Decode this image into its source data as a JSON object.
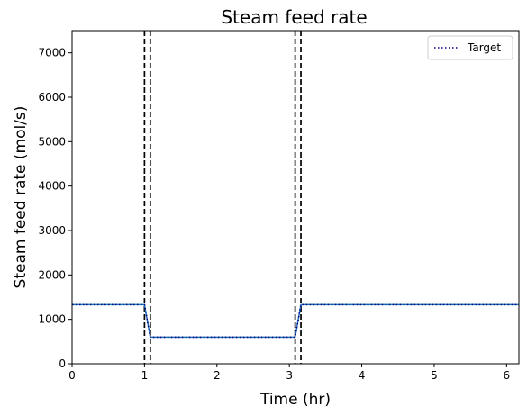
{
  "chart_data": {
    "type": "line",
    "title": "Steam feed rate",
    "xlabel": "Time (hr)",
    "ylabel": "Steam feed rate (mol/s)",
    "xlim": [
      0,
      6.17
    ],
    "ylim": [
      0,
      7500
    ],
    "xticks": [
      0,
      1,
      2,
      3,
      4,
      5,
      6
    ],
    "yticks": [
      0,
      1000,
      2000,
      3000,
      4000,
      5000,
      6000,
      7000
    ],
    "grid": false,
    "legend_position": "top-right",
    "series": [
      {
        "name": "",
        "style": "solid",
        "color": "#1f77b4",
        "x": [
          0,
          1.0,
          1.08,
          3.08,
          3.16,
          6.17
        ],
        "y": [
          1330,
          1330,
          600,
          600,
          1330,
          1330
        ]
      },
      {
        "name": "Target",
        "style": "dotted",
        "color": "#00008b",
        "x": [
          0,
          1.0,
          1.08,
          3.08,
          3.16,
          6.17
        ],
        "y": [
          1330,
          1330,
          600,
          600,
          1330,
          1330
        ]
      }
    ],
    "vlines": [
      {
        "x": 1.0,
        "style": "dashed",
        "color": "#000000"
      },
      {
        "x": 1.08,
        "style": "dashed",
        "color": "#000000"
      },
      {
        "x": 3.08,
        "style": "dashed",
        "color": "#000000"
      },
      {
        "x": 3.16,
        "style": "dashed",
        "color": "#000000"
      }
    ]
  }
}
